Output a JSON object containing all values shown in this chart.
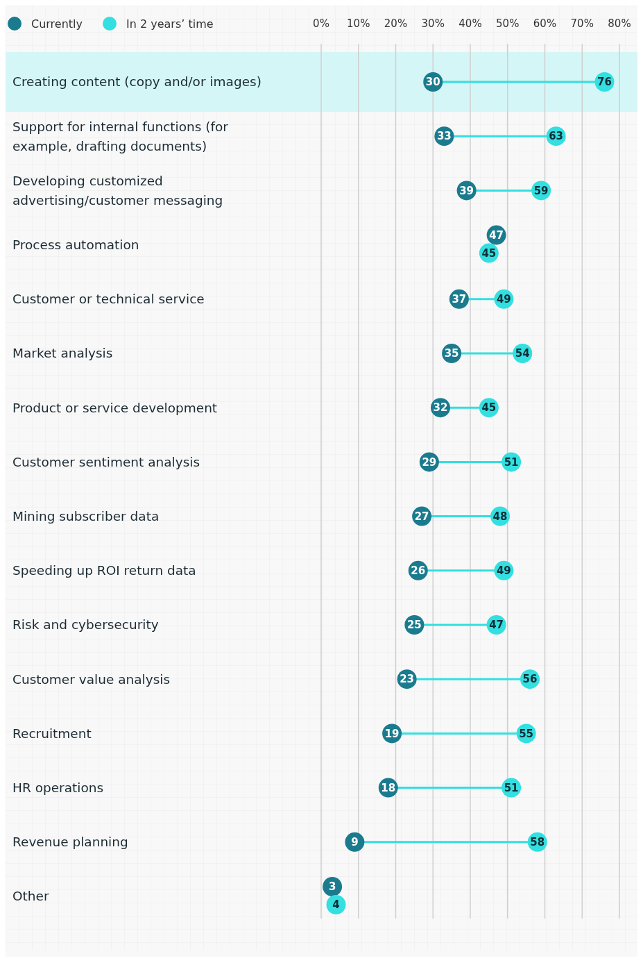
{
  "chart_data": {
    "type": "scatter",
    "orientation": "horizontal",
    "categories": [
      "Creating content (copy and/or images)",
      "Support for internal functions (for example, drafting documents)",
      "Developing customized advertising/customer messaging",
      "Process automation",
      "Customer or technical service",
      "Market analysis",
      "Product or service development",
      "Customer sentiment analysis",
      "Mining subscriber data",
      "Speeding up ROI return data",
      "Risk and cybersecurity",
      "Customer value analysis",
      "Recruitment",
      "HR operations",
      "Revenue planning",
      "Other"
    ],
    "series": [
      {
        "name": "Currently",
        "color": "#1b7b8e",
        "values": [
          30,
          33,
          39,
          47,
          37,
          35,
          32,
          29,
          27,
          26,
          25,
          23,
          19,
          18,
          9,
          3
        ]
      },
      {
        "name": "In 2 years’ time",
        "color": "#33dfe0",
        "values": [
          76,
          63,
          59,
          45,
          49,
          54,
          45,
          51,
          48,
          49,
          47,
          56,
          55,
          51,
          58,
          4
        ]
      }
    ],
    "xlim": [
      0,
      80
    ],
    "xticks": [
      {
        "value": 0,
        "label": "0%"
      },
      {
        "value": 10,
        "label": "10%"
      },
      {
        "value": 20,
        "label": "20%"
      },
      {
        "value": 30,
        "label": "30%"
      },
      {
        "value": 40,
        "label": "40%"
      },
      {
        "value": 50,
        "label": "50%"
      },
      {
        "value": 60,
        "label": "60%"
      },
      {
        "value": 70,
        "label": "70%"
      },
      {
        "value": 80,
        "label": "80%"
      }
    ],
    "bands": [
      {
        "axis": "y",
        "from": "Creating content (copy and/or images)",
        "to": "Creating content (copy and/or images)",
        "color": "#d5f6f7"
      }
    ],
    "grid": "x",
    "legend": "top left",
    "data_labels": true,
    "marker": "circle"
  }
}
